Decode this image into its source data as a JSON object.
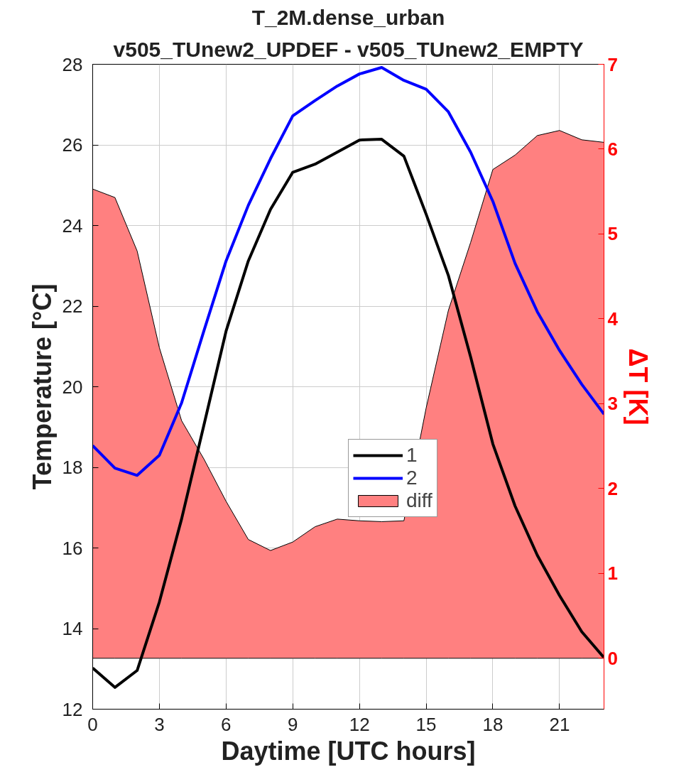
{
  "chart_data": {
    "type": "line",
    "title": "T_2M.dense_urban",
    "subtitle": "v505_TUnew2_UPDEF - v505_TUnew2_EMPTY",
    "xlabel": "Daytime [UTC hours]",
    "ylabel": "Temperature [°C]",
    "y2label": "ΔT [K]",
    "x": [
      0,
      1,
      2,
      3,
      4,
      5,
      6,
      7,
      8,
      9,
      10,
      11,
      12,
      13,
      14,
      15,
      16,
      17,
      18,
      19,
      20,
      21,
      22,
      23
    ],
    "xlim": [
      0,
      23
    ],
    "xticks": [
      0,
      3,
      6,
      9,
      12,
      15,
      18,
      21
    ],
    "ylim": [
      12,
      28
    ],
    "yticks": [
      12,
      14,
      16,
      18,
      20,
      22,
      24,
      26,
      28
    ],
    "y2lim": [
      -0.6,
      7
    ],
    "y2ticks": [
      0,
      1,
      2,
      3,
      4,
      5,
      6,
      7
    ],
    "grid": true,
    "legend": "right",
    "line_style": "solid",
    "marker": "none",
    "series": [
      {
        "name": "diff",
        "type": "area",
        "axis": "y2",
        "color": "#ff8080",
        "values": [
          5.53,
          5.43,
          4.8,
          3.66,
          2.8,
          2.35,
          1.85,
          1.4,
          1.27,
          1.37,
          1.55,
          1.64,
          1.62,
          1.61,
          1.62,
          2.95,
          4.1,
          4.9,
          5.76,
          5.93,
          6.16,
          6.22,
          6.11,
          6.08
        ]
      },
      {
        "name": "1",
        "color": "#000000",
        "values": [
          13.02,
          12.54,
          12.96,
          14.66,
          16.72,
          19.04,
          21.38,
          23.12,
          24.4,
          25.32,
          25.52,
          25.82,
          26.12,
          26.14,
          25.72,
          24.28,
          22.76,
          20.74,
          18.58,
          17.04,
          15.82,
          14.82,
          13.92,
          13.28
        ]
      },
      {
        "name": "2",
        "color": "#0000ff",
        "values": [
          18.54,
          17.98,
          17.8,
          18.3,
          19.6,
          21.38,
          23.12,
          24.5,
          25.66,
          26.72,
          27.1,
          27.46,
          27.76,
          27.92,
          27.6,
          27.38,
          26.82,
          25.82,
          24.6,
          23.06,
          21.86,
          20.9,
          20.06,
          19.32
        ]
      }
    ]
  }
}
